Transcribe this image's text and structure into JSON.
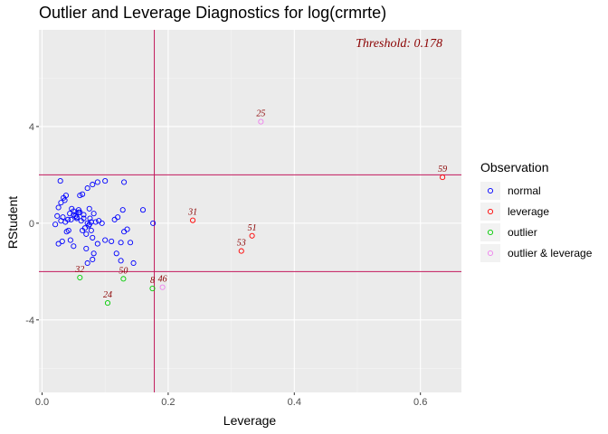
{
  "chart_data": {
    "type": "scatter",
    "title": "Outlier and Leverage Diagnostics for log(crmrte)",
    "xlabel": "Leverage",
    "ylabel": "RStudent",
    "xlim": [
      -0.005,
      0.665
    ],
    "ylim": [
      -7.0,
      8.0
    ],
    "x_ticks": [
      0.0,
      0.2,
      0.4,
      0.6
    ],
    "x_tick_labels": [
      "0.0",
      "0.2",
      "0.4",
      "0.6"
    ],
    "y_ticks": [
      -4,
      0,
      4
    ],
    "y_tick_labels": [
      "-4",
      "0",
      "4"
    ],
    "grid": true,
    "threshold_text": "Threshold: 0.178",
    "reference_lines": {
      "leverage_threshold": 0.178,
      "rstudent_bounds": [
        -2,
        2
      ]
    },
    "legend": {
      "title": "Observation",
      "position": "right",
      "entries": [
        {
          "label": "normal",
          "color": "#0000ff"
        },
        {
          "label": "leverage",
          "color": "#ff0000"
        },
        {
          "label": "outlier",
          "color": "#00cc00"
        },
        {
          "label": "outlier & leverage",
          "color": "#ee82ee"
        }
      ]
    },
    "series": [
      {
        "name": "normal",
        "color": "#0000ff",
        "points": [
          [
            0.029,
            1.75
          ],
          [
            0.034,
            1.05
          ],
          [
            0.036,
            0.95
          ],
          [
            0.038,
            1.15
          ],
          [
            0.03,
            0.85
          ],
          [
            0.026,
            0.65
          ],
          [
            0.024,
            0.3
          ],
          [
            0.021,
            -0.05
          ],
          [
            0.026,
            -0.85
          ],
          [
            0.032,
            -0.75
          ],
          [
            0.039,
            -0.35
          ],
          [
            0.042,
            -0.3
          ],
          [
            0.045,
            -0.7
          ],
          [
            0.05,
            -0.95
          ],
          [
            0.03,
            0.1
          ],
          [
            0.033,
            0.25
          ],
          [
            0.037,
            0.05
          ],
          [
            0.041,
            0.15
          ],
          [
            0.044,
            0.4
          ],
          [
            0.047,
            0.6
          ],
          [
            0.05,
            0.5
          ],
          [
            0.053,
            0.3
          ],
          [
            0.055,
            0.2
          ],
          [
            0.058,
            0.55
          ],
          [
            0.06,
            0.45
          ],
          [
            0.062,
            0.1
          ],
          [
            0.064,
            -0.3
          ],
          [
            0.066,
            0.35
          ],
          [
            0.068,
            -0.2
          ],
          [
            0.07,
            -0.45
          ],
          [
            0.072,
            0.0
          ],
          [
            0.074,
            -0.1
          ],
          [
            0.076,
            0.2
          ],
          [
            0.078,
            -0.3
          ],
          [
            0.08,
            -0.6
          ],
          [
            0.082,
            0.4
          ],
          [
            0.085,
            0.05
          ],
          [
            0.088,
            -0.85
          ],
          [
            0.07,
            -1.05
          ],
          [
            0.082,
            -1.25
          ],
          [
            0.08,
            -1.5
          ],
          [
            0.072,
            -1.65
          ],
          [
            0.06,
            1.15
          ],
          [
            0.064,
            1.2
          ],
          [
            0.072,
            1.45
          ],
          [
            0.08,
            1.6
          ],
          [
            0.088,
            1.7
          ],
          [
            0.1,
            1.75
          ],
          [
            0.13,
            1.7
          ],
          [
            0.075,
            0.6
          ],
          [
            0.09,
            0.1
          ],
          [
            0.095,
            0.0
          ],
          [
            0.1,
            -0.7
          ],
          [
            0.11,
            -0.75
          ],
          [
            0.118,
            -1.25
          ],
          [
            0.125,
            -0.8
          ],
          [
            0.135,
            -0.25
          ],
          [
            0.14,
            -0.8
          ],
          [
            0.145,
            -1.65
          ],
          [
            0.125,
            -1.55
          ],
          [
            0.115,
            0.15
          ],
          [
            0.12,
            0.25
          ],
          [
            0.128,
            0.55
          ],
          [
            0.13,
            -0.35
          ],
          [
            0.16,
            0.55
          ],
          [
            0.176,
            0.0
          ],
          [
            0.05,
            0.35
          ],
          [
            0.055,
            0.25
          ],
          [
            0.058,
            0.45
          ],
          [
            0.046,
            0.15
          ],
          [
            0.066,
            0.2
          ],
          [
            0.078,
            0.05
          ],
          [
            0.075,
            -0.05
          ]
        ]
      },
      {
        "name": "leverage",
        "color": "#ff0000",
        "points": [
          [
            0.239,
            0.12
          ],
          [
            0.333,
            -0.52
          ],
          [
            0.316,
            -1.15
          ],
          [
            0.635,
            1.9
          ]
        ],
        "labels": [
          "31",
          "51",
          "53",
          "59"
        ]
      },
      {
        "name": "outlier",
        "color": "#00cc00",
        "points": [
          [
            0.06,
            -2.25
          ],
          [
            0.104,
            -3.3
          ],
          [
            0.129,
            -2.3
          ],
          [
            0.175,
            -2.7
          ]
        ],
        "labels": [
          "32",
          "24",
          "50",
          "8"
        ]
      },
      {
        "name": "outlier & leverage",
        "color": "#ee82ee",
        "points": [
          [
            0.347,
            4.2
          ],
          [
            0.191,
            -2.65
          ]
        ],
        "labels": [
          "25",
          "46"
        ]
      }
    ]
  }
}
